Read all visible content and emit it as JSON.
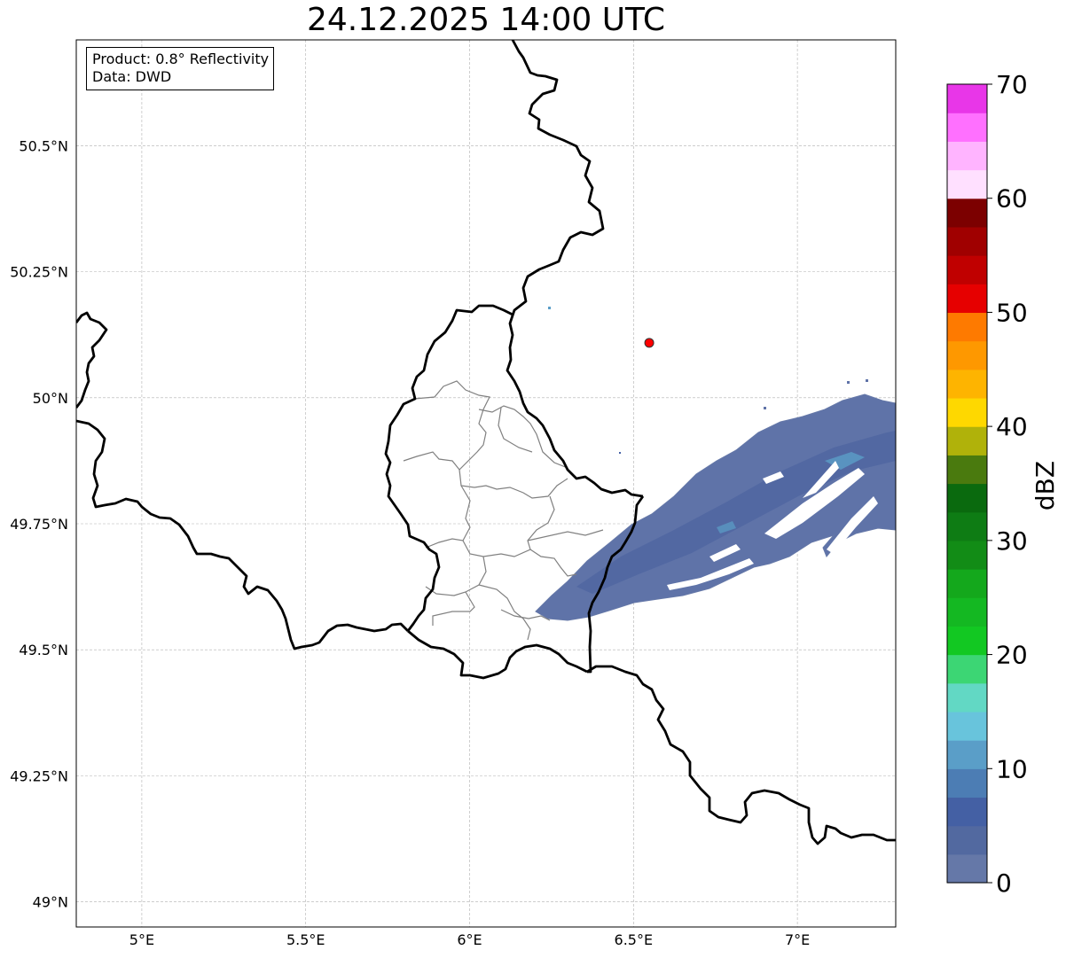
{
  "title": "24.12.2025 14:00 UTC",
  "info": {
    "product": "Product: 0.8° Reflectivity",
    "data_source": "Data: DWD"
  },
  "axes": {
    "lon_range": [
      4.8,
      7.3
    ],
    "lat_range": [
      48.95,
      50.71
    ],
    "lon_ticks": [
      {
        "value": 5.0,
        "label": "5°E"
      },
      {
        "value": 5.5,
        "label": "5.5°E"
      },
      {
        "value": 6.0,
        "label": "6°E"
      },
      {
        "value": 6.5,
        "label": "6.5°E"
      },
      {
        "value": 7.0,
        "label": "7°E"
      }
    ],
    "lat_ticks": [
      {
        "value": 49.0,
        "label": "49°N"
      },
      {
        "value": 49.25,
        "label": "49.25°N"
      },
      {
        "value": 49.5,
        "label": "49.5°N"
      },
      {
        "value": 49.75,
        "label": "49.75°N"
      },
      {
        "value": 50.0,
        "label": "50°N"
      },
      {
        "value": 50.25,
        "label": "50.25°N"
      },
      {
        "value": 50.5,
        "label": "50.5°N"
      }
    ]
  },
  "colors": {
    "border": "#000000",
    "admin": "#808080",
    "grid": "#b0b0b0",
    "radar_marker": "#ff0000",
    "echo_main": "#5f73a8",
    "echo_dark": "#4e64a0",
    "echo_light": "#5b9ec8"
  },
  "radar_site": {
    "lon": 6.548,
    "lat": 50.109
  },
  "colorbar": {
    "label": "dBZ",
    "min": 0,
    "max": 70,
    "step": 2.5,
    "tick_labels": [
      {
        "value": 0,
        "label": "0"
      },
      {
        "value": 10,
        "label": "10"
      },
      {
        "value": 20,
        "label": "20"
      },
      {
        "value": 30,
        "label": "30"
      },
      {
        "value": 40,
        "label": "40"
      },
      {
        "value": 50,
        "label": "50"
      },
      {
        "value": 60,
        "label": "60"
      },
      {
        "value": 70,
        "label": "70"
      }
    ],
    "colors": [
      "#6578a8",
      "#5269a0",
      "#4460a4",
      "#4c7db4",
      "#5a9ec8",
      "#68c4dc",
      "#62d8c4",
      "#3cd674",
      "#12c822",
      "#14b822",
      "#14a81c",
      "#128c16",
      "#0e7c14",
      "#0a6a0e",
      "#4a7a0e",
      "#b0b20a",
      "#fed800",
      "#feb400",
      "#fe9800",
      "#fe7a00",
      "#e60000",
      "#c00000",
      "#a00000",
      "#7c0000",
      "#ffe0ff",
      "#ffb4ff",
      "#ff70ff",
      "#e836e8"
    ]
  }
}
